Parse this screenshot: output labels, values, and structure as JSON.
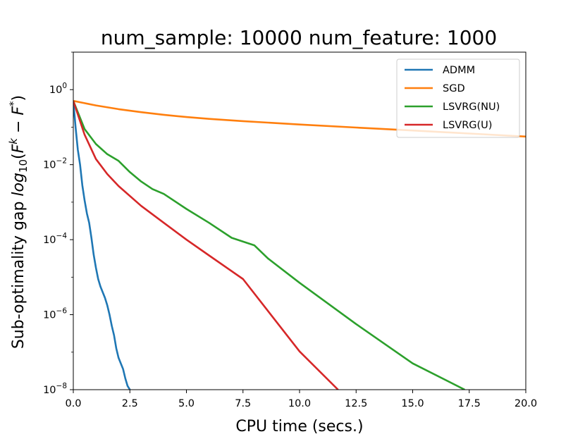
{
  "chart_data": {
    "type": "line",
    "title": "num_sample: 10000 num_feature: 1000",
    "xlabel": "CPU time (secs.)",
    "ylabel": "Sub-optimality gap log10(F^k − F^*)",
    "ylabel_prefix": "Sub-optimality gap ",
    "ylabel_math": {
      "log": "log",
      "log_sub": "10",
      "open": "(",
      "F1": "F",
      "k": "k",
      "minus": " − ",
      "F2": "F",
      "star": "*",
      "close": ")"
    },
    "xlim": [
      0,
      20
    ],
    "ylim_log10": [
      -8,
      1
    ],
    "y_scale": "log",
    "x_ticks": [
      "0.0",
      "2.5",
      "5.0",
      "7.5",
      "10.0",
      "12.5",
      "15.0",
      "17.5",
      "20.0"
    ],
    "y_ticks": [
      {
        "base": "10",
        "exp": "0"
      },
      {
        "base": "10",
        "exp": "−2"
      },
      {
        "base": "10",
        "exp": "−4"
      },
      {
        "base": "10",
        "exp": "−6"
      },
      {
        "base": "10",
        "exp": "−8"
      }
    ],
    "legend_position": "top-right",
    "grid": false,
    "series": [
      {
        "name": "ADMM",
        "color": "#1f77b4",
        "x": [
          0,
          0.1,
          0.2,
          0.3,
          0.4,
          0.5,
          0.6,
          0.7,
          0.8,
          0.9,
          1.0,
          1.1,
          1.2,
          1.3,
          1.4,
          1.5,
          1.6,
          1.7,
          1.8,
          1.9,
          2.0,
          2.1,
          2.2,
          2.3,
          2.4,
          2.5
        ],
        "y_log10": [
          -0.3,
          -1.0,
          -1.6,
          -2.0,
          -2.55,
          -2.95,
          -3.3,
          -3.55,
          -3.95,
          -4.4,
          -4.75,
          -5.05,
          -5.25,
          -5.4,
          -5.55,
          -5.75,
          -6.0,
          -6.3,
          -6.55,
          -6.9,
          -7.15,
          -7.3,
          -7.45,
          -7.7,
          -7.9,
          -8.0
        ]
      },
      {
        "name": "SGD",
        "color": "#ff7f0e",
        "x": [
          0,
          0.5,
          1.0,
          2.0,
          3.0,
          4.0,
          5.0,
          6.0,
          7.5,
          10.0,
          12.5,
          15.0,
          17.5,
          20.0
        ],
        "y_log10": [
          -0.3,
          -0.36,
          -0.42,
          -0.52,
          -0.6,
          -0.67,
          -0.73,
          -0.78,
          -0.84,
          -0.93,
          -1.01,
          -1.09,
          -1.17,
          -1.25
        ]
      },
      {
        "name": "LSVRG(NU)",
        "color": "#2ca02c",
        "x": [
          0,
          0.5,
          1.0,
          1.5,
          2.0,
          2.5,
          3.0,
          3.5,
          4.0,
          5.0,
          6.0,
          7.0,
          8.0,
          8.6,
          10.0,
          12.5,
          15.0,
          17.3
        ],
        "y_log10": [
          -0.3,
          -1.05,
          -1.45,
          -1.72,
          -1.9,
          -2.2,
          -2.45,
          -2.65,
          -2.78,
          -3.18,
          -3.55,
          -3.95,
          -4.15,
          -4.5,
          -5.15,
          -6.25,
          -7.3,
          -8.0
        ]
      },
      {
        "name": "LSVRG(U)",
        "color": "#d62728",
        "x": [
          0,
          0.5,
          1.0,
          1.5,
          2.0,
          3.0,
          4.0,
          5.0,
          6.0,
          7.5,
          10.0,
          11.7
        ],
        "y_log10": [
          -0.3,
          -1.2,
          -1.85,
          -2.25,
          -2.57,
          -3.1,
          -3.55,
          -4.0,
          -4.42,
          -5.05,
          -6.98,
          -8.0
        ]
      }
    ]
  }
}
